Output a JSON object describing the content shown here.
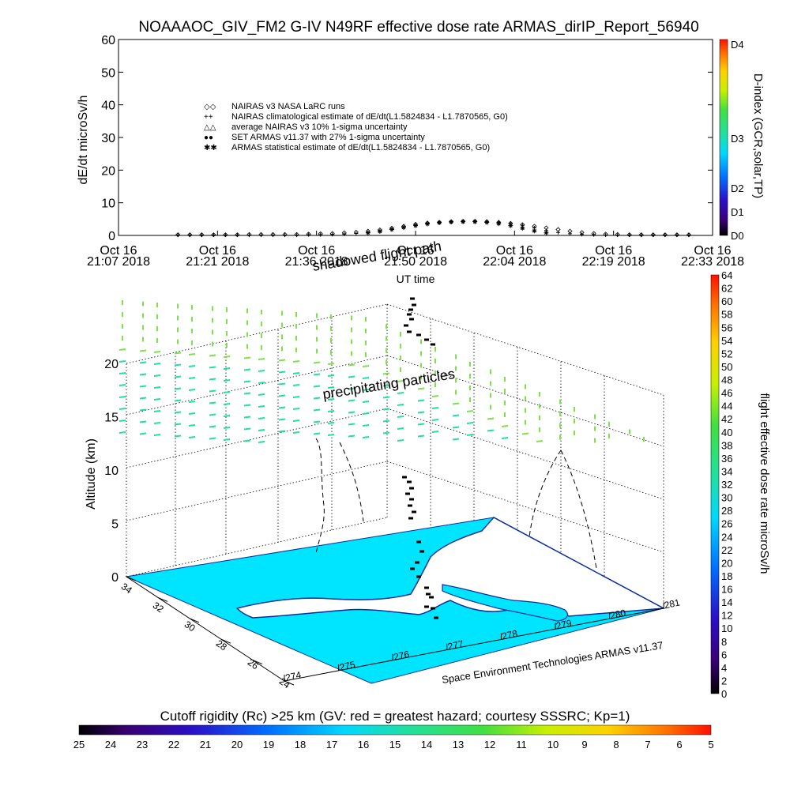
{
  "title": "NOAAAOC_GIV_FM2 G-IV    N49RF   effective dose rate ARMAS_dirIP_Report_56940",
  "colors": {
    "ocean_fill": "#00e5ff",
    "coast": "#0b2d9e",
    "precip_top": "#7fe04a",
    "precip_bottom": "#20e0a0",
    "flight_track": "#000000"
  },
  "chart_data": [
    {
      "type": "scatter",
      "title": "",
      "xlabel": "UT time",
      "ylabel": "dE/dt microSv/h",
      "ylim": [
        0,
        60
      ],
      "yticks": [
        "0",
        "10",
        "20",
        "30",
        "40",
        "50",
        "60"
      ],
      "x_ticks": [
        {
          "date": "Oct 16",
          "time": "21:07 2018"
        },
        {
          "date": "Oct 16",
          "time": "21:21 2018"
        },
        {
          "date": "Oct 16",
          "time": "21:36 2018"
        },
        {
          "date": "Oct 16",
          "time": "21:50 2018"
        },
        {
          "date": "Oct 16",
          "time": "22:04 2018"
        },
        {
          "date": "Oct 16",
          "time": "22:19 2018"
        },
        {
          "date": "Oct 16",
          "time": "22:33 2018"
        }
      ],
      "legend_placement": "top-left",
      "legend": [
        {
          "symbol": "◇◇",
          "label": "NAIRAS v3 NASA LaRC runs",
          "color": "#000000"
        },
        {
          "symbol": "++",
          "label": "NAIRAS climatological estimate of dE/dt(L1.5824834 - L1.7870565, G0)",
          "color": "#000000"
        },
        {
          "symbol": "△△",
          "label": "average NAIRAS v3 10% 1-sigma uncertainty",
          "color": "#000000"
        },
        {
          "symbol": "●●",
          "label": "SET ARMAS v11.37 with 27% 1-sigma uncertainty",
          "color": "#1030d0"
        },
        {
          "symbol": "✱✱",
          "label": "ARMAS statistical estimate of dE/dt(L1.5824834 - L1.7870565, G0)",
          "color": "#000000"
        }
      ],
      "series": [
        {
          "marker": "diamond",
          "x_frac": [
            0.1,
            0.12,
            0.14,
            0.16,
            0.18,
            0.2,
            0.22,
            0.24,
            0.26,
            0.28,
            0.3,
            0.32,
            0.34,
            0.36,
            0.38,
            0.4,
            0.42,
            0.44,
            0.46,
            0.48,
            0.5,
            0.52,
            0.54,
            0.56,
            0.58,
            0.6,
            0.62,
            0.64,
            0.66,
            0.68,
            0.7,
            0.72,
            0.74,
            0.76,
            0.78,
            0.8,
            0.82,
            0.84,
            0.86,
            0.88,
            0.9,
            0.92,
            0.94,
            0.96
          ],
          "values": [
            0.2,
            0.2,
            0.2,
            0.2,
            0.2,
            0.2,
            0.3,
            0.3,
            0.3,
            0.3,
            0.3,
            0.4,
            0.5,
            0.6,
            0.8,
            1.0,
            1.3,
            1.7,
            2.2,
            2.8,
            3.4,
            3.8,
            4.0,
            4.2,
            4.3,
            4.3,
            4.2,
            4.0,
            3.7,
            3.3,
            2.8,
            2.3,
            1.8,
            1.3,
            0.9,
            0.6,
            0.4,
            0.3,
            0.2,
            0.2,
            0.2,
            0.2,
            0.2,
            0.2
          ]
        },
        {
          "marker": "plus",
          "x_frac": [
            0.1,
            0.12,
            0.14,
            0.16,
            0.18,
            0.2,
            0.22,
            0.24,
            0.26,
            0.28,
            0.3,
            0.32,
            0.34,
            0.36,
            0.38,
            0.4,
            0.42,
            0.44,
            0.46,
            0.48,
            0.5,
            0.52,
            0.54,
            0.56,
            0.58,
            0.6,
            0.62,
            0.64,
            0.66,
            0.68,
            0.7,
            0.72,
            0.74,
            0.76,
            0.78,
            0.8,
            0.82,
            0.84,
            0.86,
            0.88,
            0.9,
            0.92,
            0.94,
            0.96
          ],
          "values": [
            0.1,
            0.1,
            0.1,
            0.1,
            0.1,
            0.1,
            0.1,
            0.1,
            0.1,
            0.1,
            0.1,
            0.2,
            0.2,
            0.3,
            0.4,
            0.6,
            0.9,
            1.4,
            2.0,
            2.7,
            3.3,
            3.8,
            4.1,
            4.3,
            4.4,
            4.4,
            4.3,
            4.1,
            3.7,
            3.1,
            2.3,
            1.5,
            0.9,
            0.5,
            0.3,
            0.2,
            0.1,
            0.1,
            0.1,
            0.1,
            0.1,
            0.1,
            0.1,
            0.1
          ]
        },
        {
          "marker": "star",
          "x_frac": [
            0.42,
            0.44,
            0.46,
            0.48,
            0.5,
            0.52,
            0.54,
            0.56,
            0.58,
            0.6,
            0.62,
            0.64,
            0.66,
            0.68,
            0.7,
            0.72
          ],
          "values": [
            0.8,
            1.2,
            1.8,
            2.4,
            3.0,
            3.5,
            3.9,
            4.1,
            4.2,
            4.2,
            4.0,
            3.6,
            3.0,
            2.2,
            1.4,
            0.8
          ]
        }
      ]
    },
    {
      "type": "scatter",
      "title": "",
      "zlabel": "Altitude (km)",
      "zticks": [
        "0",
        "5",
        "10",
        "15",
        "20"
      ],
      "lat_ticks": [
        "34",
        "32",
        "30",
        "28",
        "26",
        "24"
      ],
      "lon_ticks": [
        "274",
        "275",
        "276",
        "277",
        "278",
        "279",
        "280",
        "281"
      ],
      "annotations": [
        "shadowed flight path",
        "precipitating particles"
      ],
      "credit": "Space Environment Technologies ARMAS v11.37"
    }
  ],
  "colorbars": {
    "dindex": {
      "label": "D-index (GCR,solar,TP)",
      "ticks": [
        "D0",
        "D1",
        "D2",
        "D3",
        "D4"
      ]
    },
    "dose": {
      "label": "flight effective dose rate microSv/h",
      "ticks": [
        "0",
        "2",
        "4",
        "6",
        "8",
        "10",
        "12",
        "14",
        "16",
        "18",
        "20",
        "22",
        "24",
        "26",
        "28",
        "30",
        "32",
        "34",
        "36",
        "38",
        "40",
        "42",
        "44",
        "46",
        "48",
        "50",
        "52",
        "54",
        "56",
        "58",
        "60",
        "62",
        "64"
      ]
    },
    "cutoff": {
      "label": "Cutoff rigidity (Rc) >25 km (GV: red = greatest hazard; courtesy SSSRC; Kp=1)",
      "ticks": [
        "25",
        "24",
        "23",
        "22",
        "21",
        "20",
        "19",
        "18",
        "17",
        "16",
        "15",
        "14",
        "13",
        "12",
        "11",
        "10",
        "9",
        "8",
        "7",
        "6",
        "5"
      ]
    }
  }
}
